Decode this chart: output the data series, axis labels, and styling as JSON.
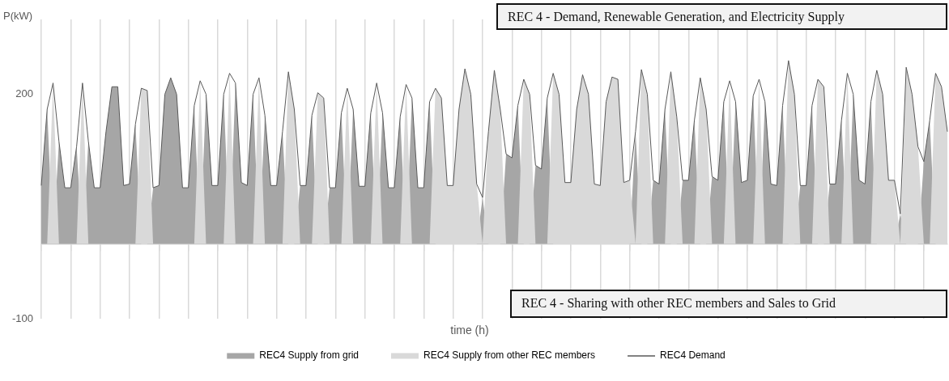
{
  "chart_data": {
    "type": "area",
    "xlabel": "time (h)",
    "ylabel": "P(kW)",
    "annotations": [
      "REC 4 - Demand, Renewable Generation, and Electricity Supply",
      "REC 4 - Sharing with other REC members and Sales to Grid"
    ],
    "categories": [
      null,
      null,
      null,
      null,
      null,
      null,
      null,
      null,
      null,
      null,
      null,
      null,
      null,
      null,
      null,
      null,
      null,
      null,
      null,
      null,
      null,
      null,
      null,
      null,
      null,
      null,
      null,
      null,
      null,
      null,
      null,
      null,
      null,
      null,
      null,
      null,
      null,
      null,
      null,
      null,
      null,
      null,
      null,
      null,
      null,
      null,
      null,
      null,
      null,
      null,
      null,
      null,
      null,
      null,
      null,
      null,
      null,
      null,
      null,
      null,
      null,
      null,
      null,
      null,
      null,
      null,
      null,
      null,
      null,
      null,
      null,
      null,
      null,
      null,
      null,
      null,
      null,
      null,
      null,
      null,
      null,
      null,
      null,
      null,
      null,
      null,
      null,
      null,
      null,
      null,
      null,
      null,
      null,
      null,
      null,
      null,
      null,
      null,
      null,
      null,
      null,
      null,
      null,
      null,
      null,
      null,
      null,
      null,
      null,
      null,
      null,
      null,
      null,
      null,
      null,
      null,
      null,
      null,
      null,
      null,
      null,
      null,
      null,
      null,
      null,
      null,
      null,
      null,
      null,
      null,
      null,
      null,
      null,
      null,
      null,
      null,
      null,
      null,
      null,
      null,
      null,
      null,
      null,
      null,
      null,
      null,
      null,
      null,
      null,
      null,
      null,
      null,
      null,
      null,
      null
    ],
    "series": [
      {
        "name": "REC4 Supply from grid",
        "color": "#a6a6a6",
        "values": [
          78,
          180,
          0,
          137,
          75,
          75,
          130,
          0,
          137,
          75,
          75,
          150,
          210,
          210,
          78,
          80,
          160,
          0,
          0,
          75,
          78,
          200,
          222,
          200,
          75,
          75,
          185,
          0,
          200,
          78,
          78,
          200,
          0,
          215,
          82,
          78,
          200,
          0,
          172,
          78,
          78,
          150,
          0,
          0,
          78,
          78,
          172,
          0,
          0,
          75,
          75,
          175,
          0,
          180,
          77,
          77,
          175,
          0,
          175,
          75,
          75,
          170,
          0,
          195,
          75,
          75,
          190,
          0,
          0,
          0,
          0,
          0,
          0,
          0,
          0,
          62,
          0,
          0,
          0,
          120,
          115,
          185,
          0,
          0,
          105,
          100,
          195,
          0,
          0,
          0,
          0,
          0,
          0,
          0,
          0,
          0,
          0,
          0,
          0,
          0,
          0,
          150,
          0,
          0,
          85,
          80,
          180,
          0,
          0,
          85,
          85,
          165,
          0,
          0,
          90,
          85,
          190,
          0,
          190,
          82,
          85,
          198,
          0,
          190,
          80,
          78,
          185,
          0,
          0,
          78,
          78,
          185,
          0,
          0,
          80,
          80,
          165,
          0,
          200,
          85,
          80,
          190,
          0,
          0,
          0,
          0,
          40,
          0,
          0,
          0,
          110,
          165,
          0,
          0,
          0
        ]
      },
      {
        "name": "REC4 Supply from other REC members",
        "color": "#d9d9d9",
        "values": [
          0,
          0,
          215,
          0,
          0,
          0,
          0,
          215,
          0,
          0,
          0,
          0,
          0,
          0,
          0,
          0,
          0,
          208,
          205,
          0,
          0,
          0,
          0,
          0,
          0,
          0,
          0,
          218,
          0,
          0,
          0,
          0,
          228,
          0,
          0,
          0,
          0,
          222,
          0,
          0,
          0,
          0,
          230,
          180,
          0,
          0,
          0,
          202,
          195,
          0,
          0,
          0,
          208,
          0,
          0,
          0,
          0,
          215,
          0,
          0,
          0,
          0,
          213,
          0,
          0,
          0,
          0,
          208,
          195,
          78,
          78,
          180,
          234,
          200,
          80,
          0,
          150,
          232,
          180,
          0,
          0,
          0,
          220,
          200,
          0,
          0,
          0,
          228,
          200,
          82,
          82,
          180,
          226,
          200,
          80,
          78,
          190,
          223,
          220,
          82,
          85,
          0,
          233,
          200,
          0,
          0,
          0,
          230,
          170,
          0,
          0,
          0,
          222,
          180,
          0,
          0,
          0,
          218,
          0,
          0,
          0,
          0,
          220,
          0,
          0,
          0,
          0,
          245,
          200,
          0,
          0,
          0,
          220,
          210,
          0,
          0,
          0,
          228,
          0,
          0,
          0,
          0,
          232,
          200,
          85,
          85,
          0,
          236,
          200,
          130,
          0,
          0,
          228,
          210,
          150
        ]
      },
      {
        "name": "REC4 Demand",
        "type": "line",
        "color": "#595959",
        "values": [
          78,
          180,
          215,
          137,
          75,
          75,
          130,
          215,
          137,
          75,
          75,
          150,
          210,
          210,
          78,
          80,
          160,
          208,
          205,
          75,
          78,
          200,
          222,
          200,
          75,
          75,
          185,
          218,
          200,
          78,
          78,
          200,
          228,
          215,
          82,
          78,
          200,
          222,
          172,
          78,
          78,
          150,
          230,
          180,
          78,
          78,
          172,
          202,
          195,
          75,
          75,
          175,
          208,
          180,
          77,
          77,
          175,
          215,
          175,
          75,
          75,
          170,
          213,
          195,
          75,
          75,
          190,
          208,
          195,
          78,
          78,
          180,
          234,
          200,
          80,
          62,
          150,
          232,
          180,
          120,
          115,
          185,
          220,
          200,
          105,
          100,
          195,
          228,
          200,
          82,
          82,
          180,
          226,
          200,
          80,
          78,
          190,
          223,
          220,
          82,
          85,
          150,
          233,
          200,
          85,
          80,
          180,
          230,
          170,
          85,
          85,
          165,
          222,
          180,
          90,
          85,
          190,
          218,
          190,
          82,
          85,
          198,
          220,
          190,
          80,
          78,
          185,
          245,
          200,
          78,
          78,
          185,
          220,
          210,
          80,
          80,
          165,
          228,
          200,
          85,
          80,
          190,
          232,
          200,
          85,
          85,
          40,
          236,
          200,
          130,
          110,
          165,
          228,
          210,
          150
        ]
      }
    ],
    "ylim": [
      -100,
      300
    ],
    "yticks": [
      -100,
      200
    ],
    "grid": "x",
    "legend": "bottom",
    "tick_labels": "y",
    "marker": "none"
  }
}
